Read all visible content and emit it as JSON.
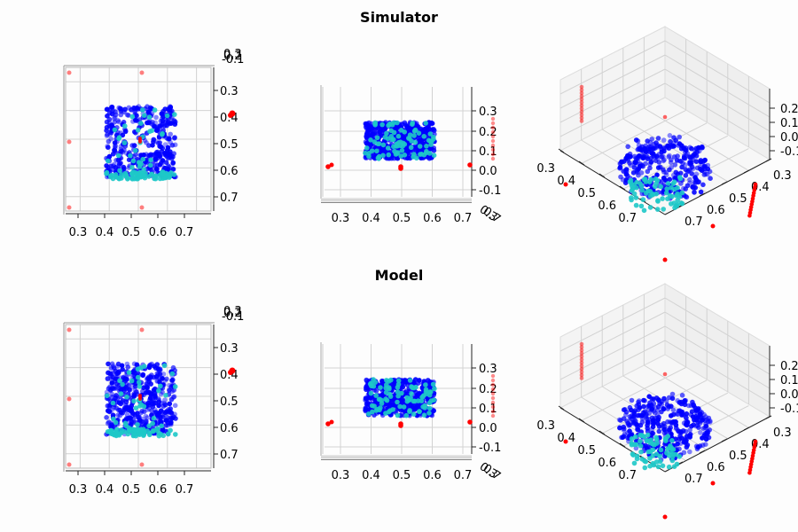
{
  "titles": {
    "top": "Simulator",
    "bottom": "Model"
  },
  "colors": {
    "blue": "#0000ff",
    "cyan": "#1ec8c8",
    "red": "#ff0000",
    "grid": "#d2d2d2",
    "axis": "#222222"
  },
  "chart_data": [
    {
      "type": "scatter",
      "projection": "3d",
      "row": "Simulator",
      "view": "top",
      "xlim": [
        0.25,
        0.75
      ],
      "ylim": [
        0.25,
        0.75
      ],
      "zlim": [
        -0.15,
        0.35
      ],
      "xticks": [
        "0.3",
        "0.4",
        "0.5",
        "0.6",
        "0.7"
      ],
      "yticks": [
        "0.3",
        "0.4",
        "0.5",
        "0.6",
        "0.7"
      ],
      "zticks": [
        "-0.1",
        "0.0",
        "0.1",
        "0.2",
        "0.3"
      ],
      "object_shape": "ring",
      "object_extent": {
        "x": [
          0.37,
          0.63
        ],
        "y": [
          0.37,
          0.63
        ],
        "z": [
          0.0,
          0.2
        ]
      },
      "series": [
        {
          "name": "",
          "color": "blue",
          "count": 420
        },
        {
          "name": "",
          "color": "cyan",
          "count": 120
        },
        {
          "name": "",
          "color": "red",
          "count": 18
        }
      ]
    },
    {
      "type": "scatter",
      "projection": "3d",
      "row": "Simulator",
      "view": "front",
      "xlim": [
        0.25,
        0.75
      ],
      "ylim": [
        0.25,
        0.75
      ],
      "zlim": [
        -0.15,
        0.35
      ],
      "xticks": [
        "0.3",
        "0.4",
        "0.5",
        "0.6",
        "0.7"
      ],
      "zticks": [
        "-0.1",
        "0.0",
        "0.1",
        "0.2",
        "0.3"
      ],
      "object_shape": "block",
      "object_extent": {
        "x": [
          0.37,
          0.63
        ],
        "z": [
          0.07,
          0.2
        ]
      }
    },
    {
      "type": "scatter",
      "projection": "3d",
      "row": "Simulator",
      "view": "perspective",
      "xlim": [
        0.25,
        0.75
      ],
      "ylim": [
        0.25,
        0.75
      ],
      "zlim": [
        -0.15,
        0.35
      ],
      "xticks": [
        "0.3",
        "0.4",
        "0.5",
        "0.6",
        "0.7"
      ],
      "yticks": [
        "0.3",
        "0.4",
        "0.5",
        "0.6",
        "0.7"
      ],
      "zticks": [
        "-0.1",
        "0.0",
        "0.1",
        "0.2"
      ],
      "object_shape": "ring"
    },
    {
      "type": "scatter",
      "projection": "3d",
      "row": "Model",
      "view": "top",
      "xlim": [
        0.25,
        0.75
      ],
      "ylim": [
        0.25,
        0.75
      ],
      "zlim": [
        -0.15,
        0.35
      ],
      "xticks": [
        "0.3",
        "0.4",
        "0.5",
        "0.6",
        "0.7"
      ],
      "yticks": [
        "0.3",
        "0.4",
        "0.5",
        "0.6",
        "0.7"
      ],
      "zticks": [
        "-0.1",
        "0.0",
        "0.1",
        "0.2",
        "0.3"
      ],
      "object_shape": "block",
      "object_extent": {
        "x": [
          0.37,
          0.63
        ],
        "y": [
          0.37,
          0.63
        ],
        "z": [
          0.0,
          0.2
        ]
      }
    },
    {
      "type": "scatter",
      "projection": "3d",
      "row": "Model",
      "view": "front",
      "xlim": [
        0.25,
        0.75
      ],
      "ylim": [
        0.25,
        0.75
      ],
      "zlim": [
        -0.15,
        0.35
      ],
      "xticks": [
        "0.3",
        "0.4",
        "0.5",
        "0.6",
        "0.7"
      ],
      "zticks": [
        "-0.1",
        "0.0",
        "0.1",
        "0.2",
        "0.3"
      ],
      "object_shape": "block",
      "object_extent": {
        "x": [
          0.37,
          0.63
        ],
        "z": [
          0.07,
          0.2
        ]
      }
    },
    {
      "type": "scatter",
      "projection": "3d",
      "row": "Model",
      "view": "perspective",
      "xlim": [
        0.25,
        0.75
      ],
      "ylim": [
        0.25,
        0.75
      ],
      "zlim": [
        -0.15,
        0.35
      ],
      "xticks": [
        "0.3",
        "0.4",
        "0.5",
        "0.6",
        "0.7"
      ],
      "yticks": [
        "0.3",
        "0.4",
        "0.5",
        "0.6",
        "0.7"
      ],
      "zticks": [
        "-0.1",
        "0.0",
        "0.1",
        "0.2"
      ],
      "object_shape": "block"
    }
  ]
}
